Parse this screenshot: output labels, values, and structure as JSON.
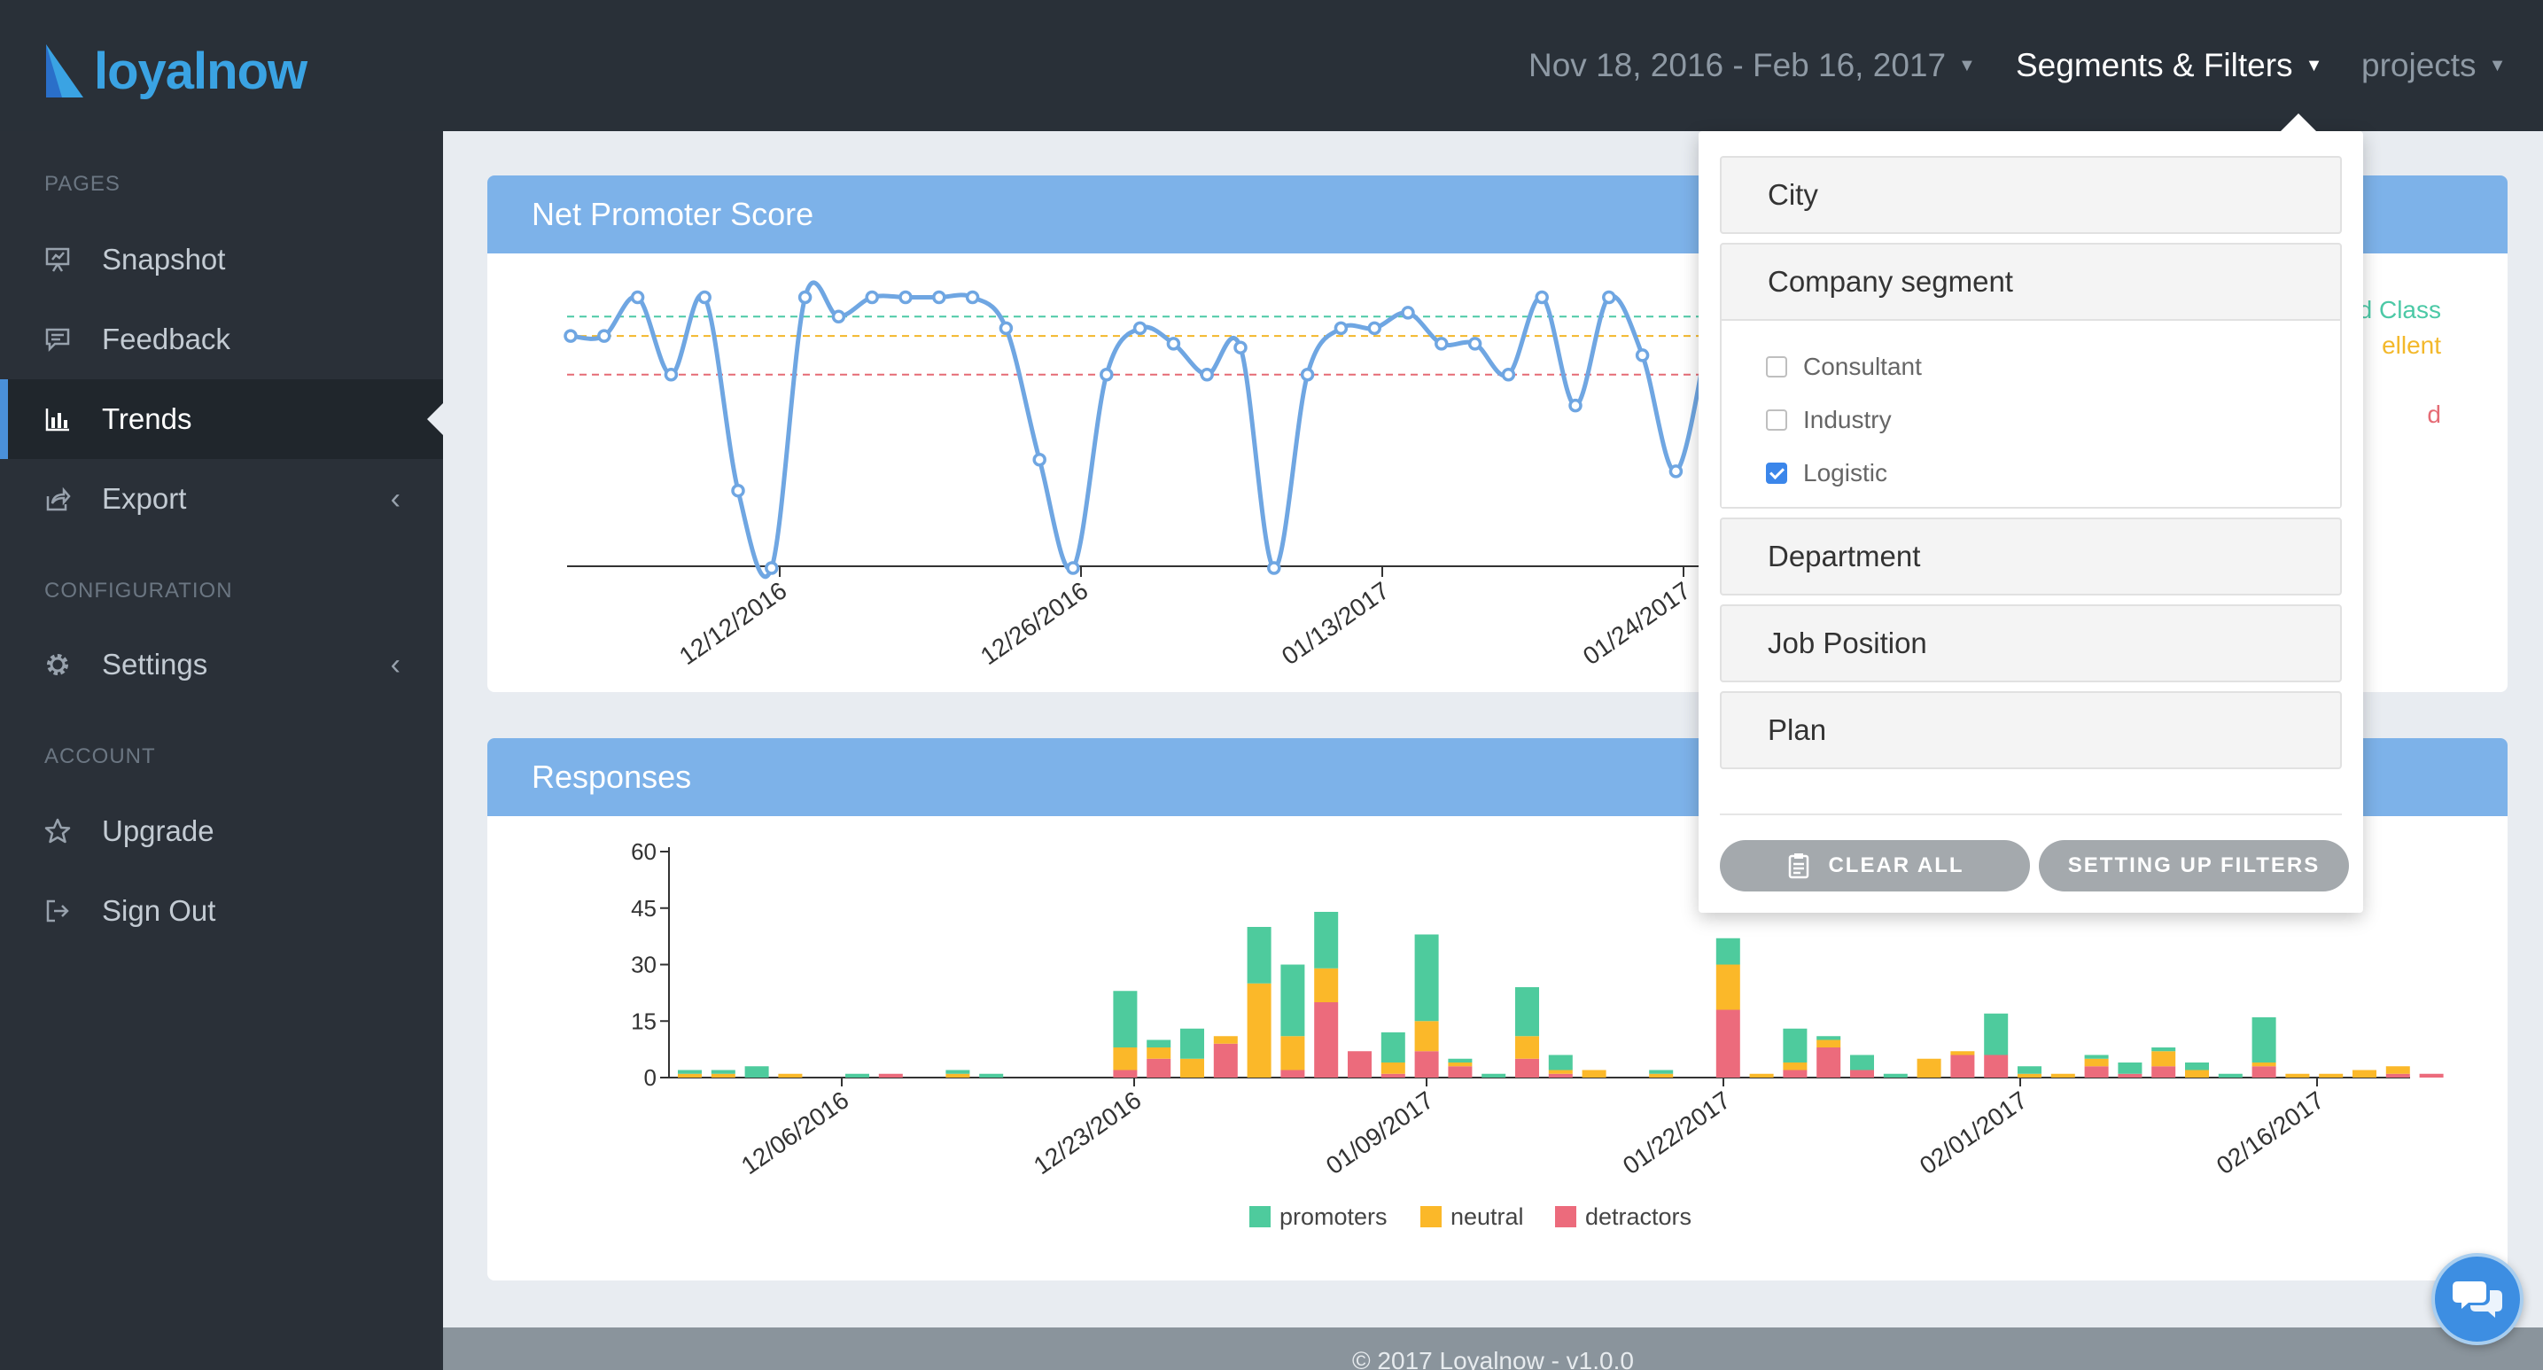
{
  "header": {
    "logo_text": "loyalnow",
    "date_range": "Nov 18, 2016 - Feb 16, 2017",
    "segments_label": "Segments & Filters",
    "projects_label": "projects",
    "caret": "▼"
  },
  "sidebar": {
    "sections": [
      "PAGES",
      "CONFIGURATION",
      "ACCOUNT"
    ],
    "items": [
      {
        "label": "Snapshot",
        "icon": "presentation-icon"
      },
      {
        "label": "Feedback",
        "icon": "comment-icon"
      },
      {
        "label": "Trends",
        "icon": "bar-chart-icon",
        "active": true
      },
      {
        "label": "Export",
        "icon": "share-icon",
        "chevron": "‹"
      },
      {
        "label": "Settings",
        "icon": "gear-icon",
        "chevron": "‹"
      },
      {
        "label": "Upgrade",
        "icon": "star-icon"
      },
      {
        "label": "Sign Out",
        "icon": "sign-out-icon"
      }
    ]
  },
  "nps_panel": {
    "title": "Net Promoter Score",
    "legend_partial": [
      "rld Class",
      "ellent",
      "d"
    ]
  },
  "responses_panel": {
    "title": "Responses"
  },
  "colors": {
    "header_bg": "#293038",
    "sidebar_bg": "#2a3038",
    "panel_header": "#7db2e9",
    "nps_line": "#6fa6e2",
    "world_class": "#4cc9a6",
    "excellent": "#f3b82b",
    "good": "#e56b75",
    "promoters": "#4ecb9d",
    "neutral": "#fbb829",
    "detractors": "#ec6b7c"
  },
  "chart_data": [
    {
      "type": "line",
      "title": "Net Promoter Score",
      "x_tick_labels": [
        "12/12/2016",
        "12/26/2016",
        "01/13/2017",
        "01/24/2017"
      ],
      "values": [
        30,
        30,
        40,
        20,
        40,
        -10,
        -30,
        40,
        35,
        40,
        40,
        40,
        40,
        32,
        -2,
        -30,
        20,
        32,
        28,
        20,
        27,
        -30,
        20,
        32,
        32,
        36,
        28,
        28,
        20,
        40,
        12,
        40,
        25,
        -5,
        32
      ],
      "reference_lines": [
        {
          "name": "World Class",
          "value": 35,
          "color": "#4cc9a6"
        },
        {
          "name": "Excellent",
          "value": 30,
          "color": "#f3b82b"
        },
        {
          "name": "Good",
          "value": 20,
          "color": "#e56b75"
        }
      ],
      "ylim": [
        -30,
        44
      ]
    },
    {
      "type": "bar",
      "stacked": true,
      "title": "Responses",
      "y_ticks": [
        "0",
        "15",
        "30",
        "45",
        "60"
      ],
      "ylim": [
        0,
        60
      ],
      "x_tick_labels": [
        "12/06/2016",
        "12/23/2016",
        "01/09/2017",
        "01/22/2017",
        "02/01/2017",
        "02/16/2017"
      ],
      "legend": [
        "promoters",
        "neutral",
        "detractors"
      ],
      "series": [
        {
          "name": "promoters",
          "values": [
            1,
            1,
            3,
            0,
            0,
            1,
            0,
            0,
            1,
            1,
            0,
            0,
            0,
            15,
            2,
            8,
            0,
            15,
            19,
            15,
            0,
            8,
            23,
            1,
            1,
            13,
            4,
            0,
            0,
            1,
            0,
            7,
            0,
            9,
            1,
            4,
            1,
            0,
            0,
            11,
            2,
            0,
            1,
            3,
            1,
            2,
            1,
            12,
            0,
            0,
            0,
            0,
            0
          ]
        },
        {
          "name": "neutral",
          "values": [
            1,
            1,
            0,
            1,
            0,
            0,
            0,
            0,
            1,
            0,
            0,
            0,
            0,
            6,
            3,
            5,
            2,
            25,
            9,
            9,
            0,
            3,
            8,
            1,
            0,
            6,
            1,
            2,
            0,
            1,
            0,
            12,
            1,
            2,
            2,
            0,
            0,
            5,
            1,
            0,
            1,
            1,
            2,
            0,
            4,
            2,
            0,
            1,
            1,
            1,
            2,
            2,
            0
          ]
        },
        {
          "name": "detractors",
          "values": [
            0,
            0,
            0,
            0,
            0,
            0,
            1,
            0,
            0,
            0,
            0,
            0,
            0,
            2,
            5,
            0,
            9,
            0,
            2,
            20,
            7,
            1,
            7,
            3,
            0,
            5,
            1,
            0,
            0,
            0,
            0,
            18,
            0,
            2,
            8,
            2,
            0,
            0,
            6,
            6,
            0,
            0,
            3,
            1,
            3,
            0,
            0,
            3,
            0,
            0,
            0,
            1,
            1
          ]
        }
      ]
    }
  ],
  "filters": {
    "groups": [
      {
        "label": "City"
      },
      {
        "label": "Company segment",
        "options": [
          {
            "label": "Consultant",
            "checked": false
          },
          {
            "label": "Industry",
            "checked": false
          },
          {
            "label": "Logistic",
            "checked": true
          }
        ]
      },
      {
        "label": "Department"
      },
      {
        "label": "Job Position"
      },
      {
        "label": "Plan"
      }
    ],
    "clear_all_label": "CLEAR ALL",
    "setup_label": "SETTING UP FILTERS"
  },
  "footer": {
    "text": "© 2017 Loyalnow - v1.0.0"
  }
}
